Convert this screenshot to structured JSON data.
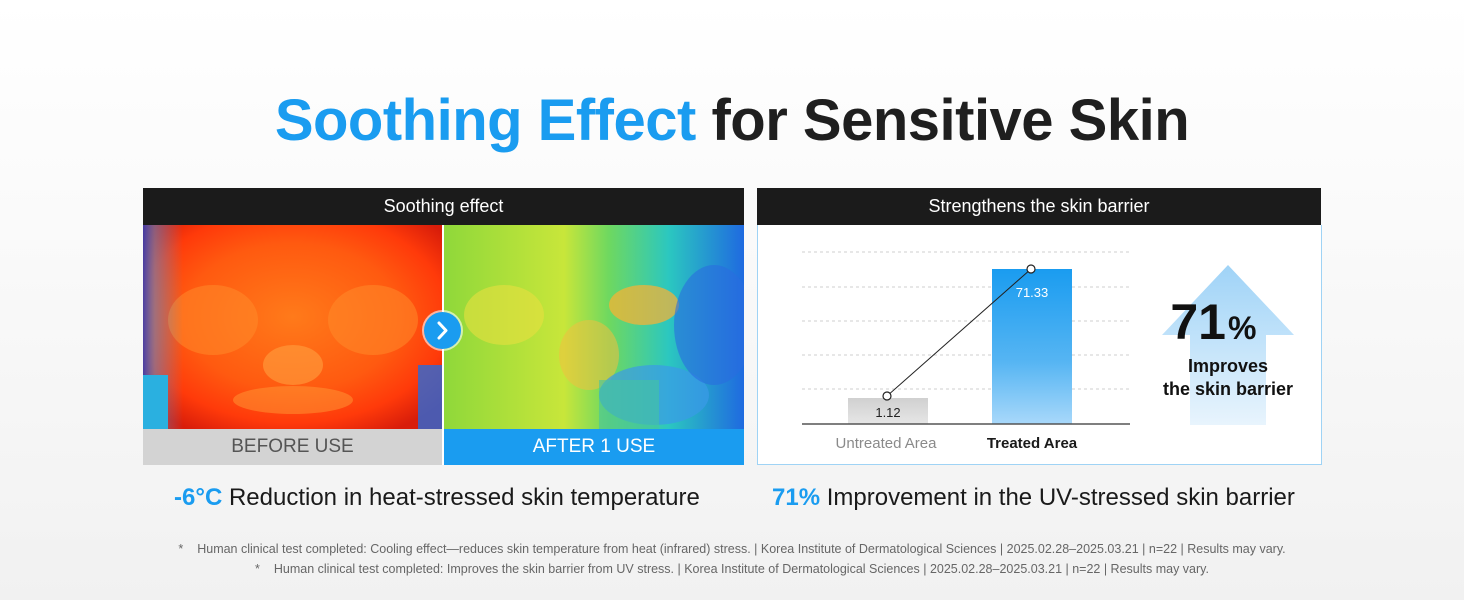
{
  "headline": {
    "accent": "Soothing Effect",
    "rest": "for Sensitive Skin"
  },
  "left_panel": {
    "title": "Soothing effect",
    "before_label": "BEFORE USE",
    "after_label": "AFTER 1 USE"
  },
  "right_panel": {
    "title": "Strengthens the skin barrier",
    "chart_data": {
      "type": "bar",
      "categories": [
        "Untreated Area",
        "Treated Area"
      ],
      "values": [
        1.12,
        71.33
      ],
      "value_labels": [
        "1.12",
        "71.33"
      ],
      "grid": true,
      "bar_colors": [
        "#d6d6d6",
        "#1a9cf0"
      ]
    },
    "big_stat": {
      "number": "71",
      "unit": "%",
      "line1": "Improves",
      "line2": "the skin barrier"
    }
  },
  "captions": {
    "left": {
      "highlight": "-6°C",
      "text": "Reduction in heat-stressed skin temperature"
    },
    "right": {
      "highlight": "71%",
      "text": "Improvement in the UV-stressed skin barrier"
    }
  },
  "footnotes": [
    {
      "star": "*",
      "text": "Human clinical test completed: Cooling effect—reduces skin temperature from heat (infrared) stress. | Korea Institute of Dermatological Sciences | 2025.02.28–2025.03.21 | n=22 | Results may vary."
    },
    {
      "star": "*",
      "text": "Human clinical test completed: Improves the skin barrier from UV stress. | Korea Institute of Dermatological Sciences | 2025.02.28–2025.03.21 | n=22 | Results may vary."
    }
  ],
  "colors": {
    "accent": "#1a9cf0",
    "dark": "#1b1b1b"
  }
}
